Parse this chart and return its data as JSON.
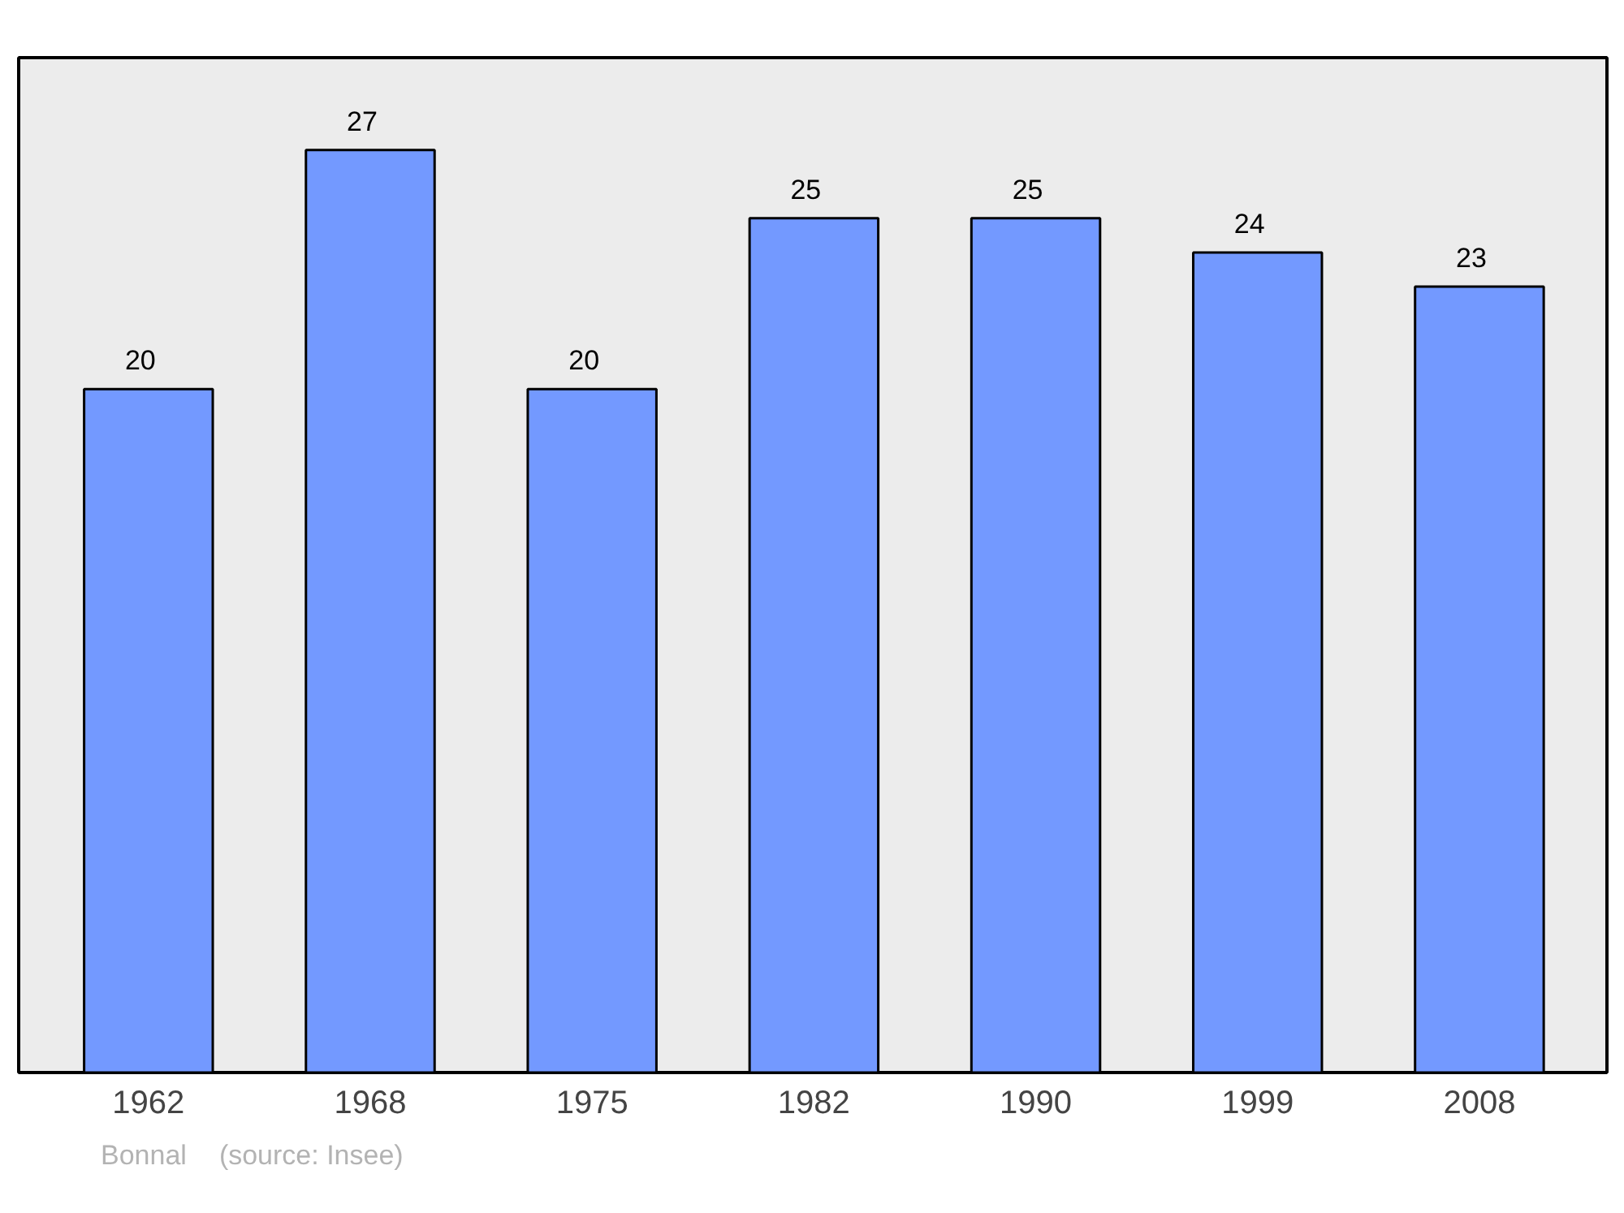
{
  "chart_data": {
    "type": "bar",
    "categories": [
      "1962",
      "1968",
      "1975",
      "1982",
      "1990",
      "1999",
      "2008"
    ],
    "values": [
      20,
      27,
      20,
      25,
      25,
      24,
      23
    ],
    "color": "#7399ff",
    "data_labels": true,
    "grid": false,
    "annotations": [
      "Bonnal",
      "(source: Insee)"
    ]
  }
}
